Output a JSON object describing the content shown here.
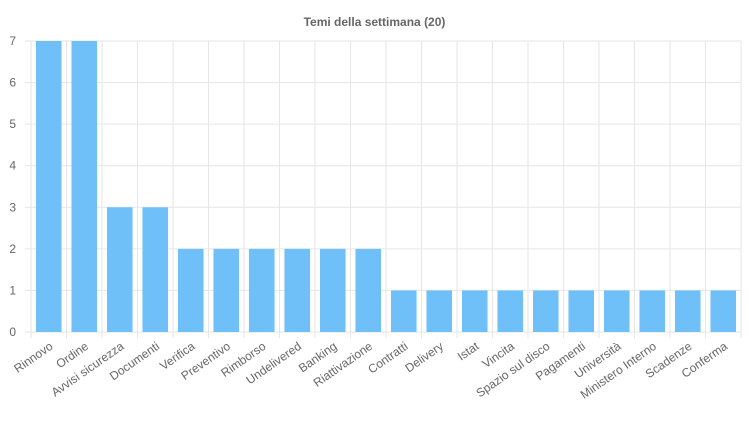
{
  "chart_data": {
    "type": "bar",
    "title": "Temi della settimana (20)",
    "categories": [
      "Rinnovo",
      "Ordine",
      "Avvisi sicurezza",
      "Documenti",
      "Verifica",
      "Preventivo",
      "Rimborso",
      "Undelivered",
      "Banking",
      "Riattivazione",
      "Contratti",
      "Delivery",
      "Istat",
      "Vincita",
      "Spazio sul disco",
      "Pagamenti",
      "Università",
      "Ministero Interno",
      "Scadenze",
      "Conferma"
    ],
    "values": [
      7,
      7,
      3,
      3,
      2,
      2,
      2,
      2,
      2,
      2,
      1,
      1,
      1,
      1,
      1,
      1,
      1,
      1,
      1,
      1
    ],
    "ylim": [
      0,
      7
    ],
    "yticks": [
      "0",
      "1",
      "2",
      "3",
      "4",
      "5",
      "6",
      "7"
    ],
    "grid": true,
    "legend": "none",
    "colors": {
      "bar": "#6fbff9",
      "grid": "#e6e6e6",
      "text": "#666666"
    }
  }
}
